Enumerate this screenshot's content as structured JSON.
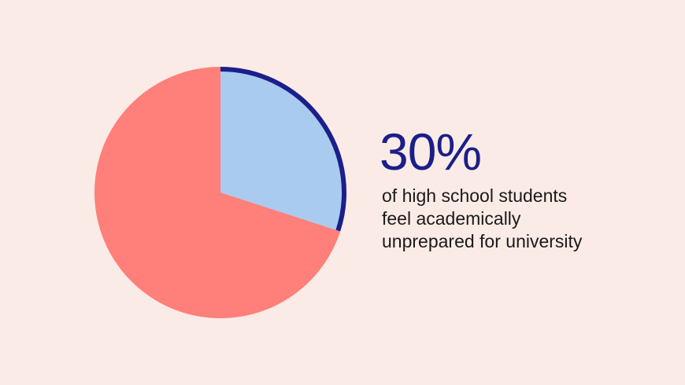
{
  "chart_data": {
    "type": "pie",
    "slices": [
      {
        "value": 30,
        "color": "#a9cbf0",
        "highlight": true,
        "outline_color": "#1b1f8a"
      },
      {
        "value": 70,
        "color": "#ff7f7a"
      }
    ]
  },
  "headline": "30%",
  "caption_lines": [
    "of high school students",
    "feel academically",
    "unprepared for university"
  ]
}
